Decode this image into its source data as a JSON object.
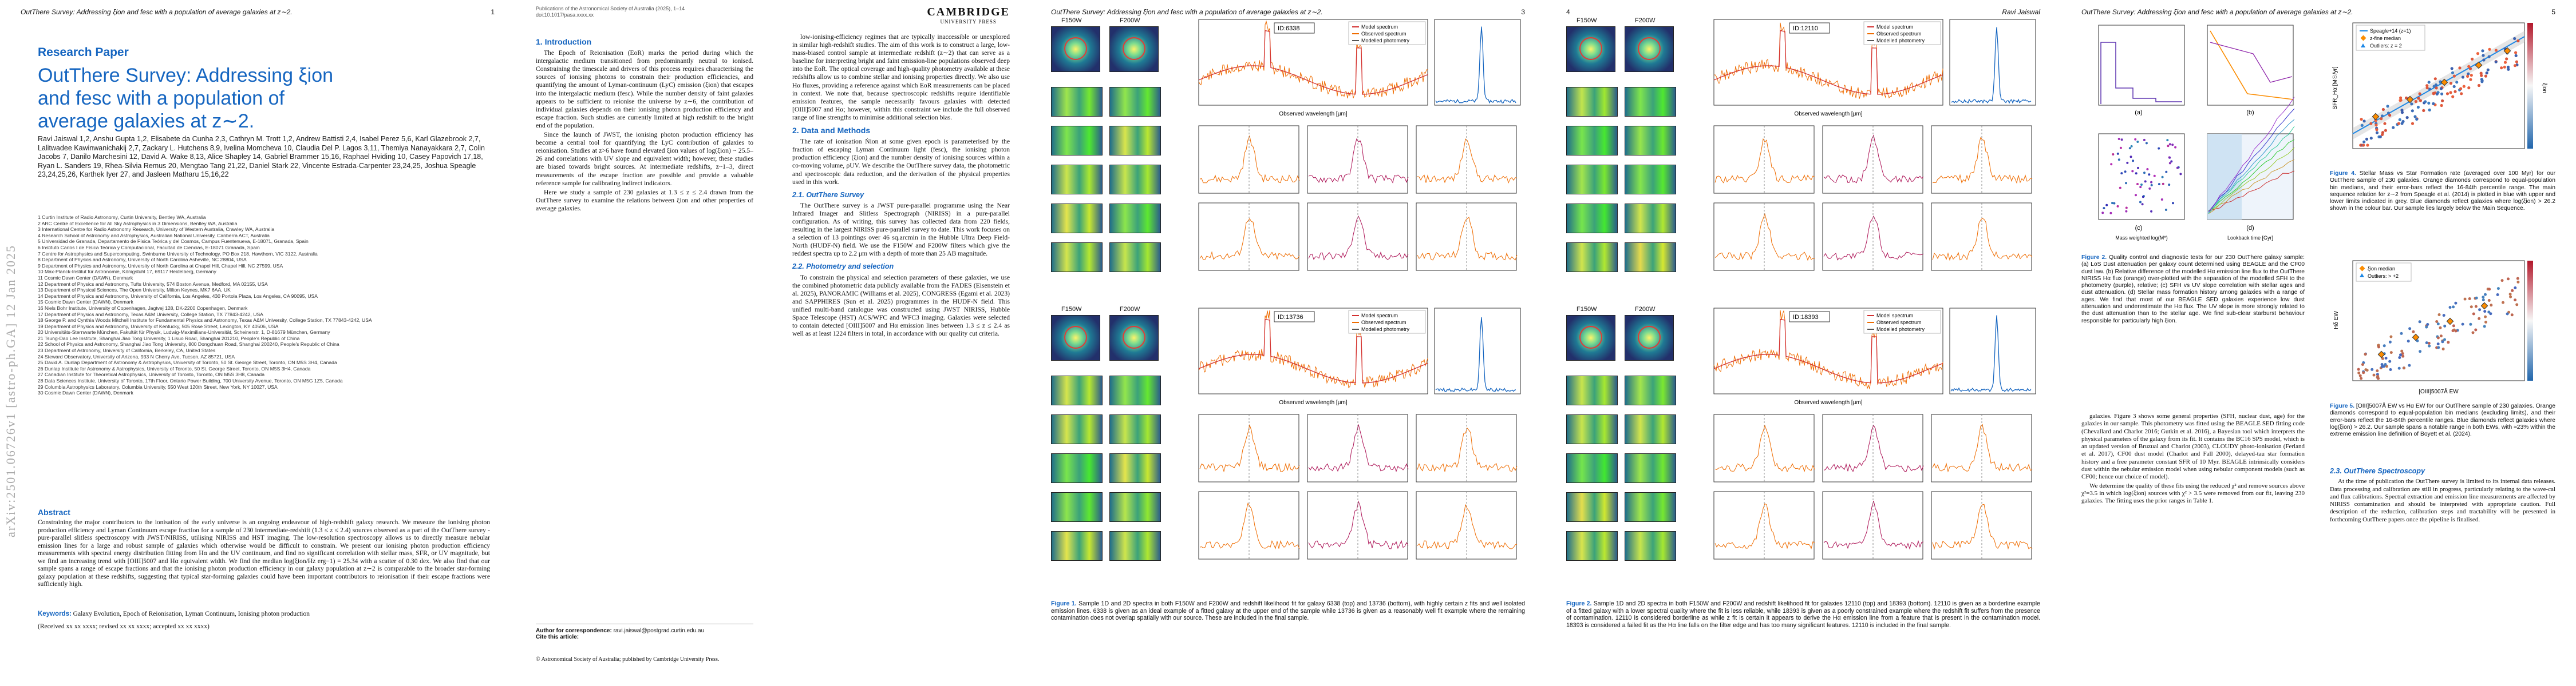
{
  "page1": {
    "running_title": "OutThere Survey: Addressing ξion and fesc with a population of average galaxies at z∼2.",
    "page_number": "1",
    "arxiv_id": "arXiv:2501.06726v1 [astro-ph.GA] 12 Jan 2025",
    "article_type": "Research Paper",
    "title": "OutThere Survey: Addressing ξion and fesc with a population of average galaxies at z∼2.",
    "authors": "Ravi Jaiswal 1,2, Anshu Gupta 1,2, Elisabete da Cunha 2,3, Cathryn M. Trott 1,2, Andrew Battisti 2,4, Isabel Perez 5,6, Karl Glazebrook 2,7, Lalitwadee Kawinwanichakij 2,7, Zackary L. Hutchens 8,9, Ivelina Momcheva 10, Claudia Del P. Lagos 3,11, Themiya Nanayakkara 2,7, Colin Jacobs 7, Danilo Marchesini 12, David A. Wake 8,13, Alice Shapley 14, Gabriel Brammer 15,16, Raphael Hviding 10, Casey Papovich 17,18, Ryan L. Sanders 19, Rhea-Silvia Remus 20, Mengtao Tang 21,22, Daniel Stark 22, Vincente Estrada-Carpenter 23,24,25, Joshua Speagle 23,24,25,26, Karthek Iyer 27, and Jasleen Matharu 15,16,22",
    "affiliations": [
      "1 Curtin Institute of Radio Astronomy, Curtin University, Bentley WA, Australia",
      "2 ARC Centre of Excellence for All Sky Astrophysics in 3 Dimensions, Bentley WA, Australia",
      "3 International Centre for Radio Astronomy Research, University of Western Australia, Crawley WA, Australia",
      "4 Research School of Astronomy and Astrophysics, Australian National University, Canberra ACT, Australia",
      "5 Universidad de Granada, Departamento de Física Teórica y del Cosmos, Campus Fuentenueva, E-18071, Granada, Spain",
      "6 Instituto Carlos I de Física Teórica y Computacional, Facultad de Ciencias, E-18071 Granada, Spain",
      "7 Centre for Astrophysics and Supercomputing, Swinburne University of Technology, PO Box 218, Hawthorn, VIC 3122, Australia",
      "8 Department of Physics and Astronomy, University of North Carolina Asheville, NC 28804, USA",
      "9 Department of Physics and Astronomy, University of North Carolina at Chapel Hill, Chapel Hill, NC 27599, USA",
      "10 Max-Planck-Institut für Astronomie, Königstuhl 17, 69117 Heidelberg, Germany",
      "11 Cosmic Dawn Center (DAWN), Denmark",
      "12 Department of Physics and Astronomy, Tufts University, 574 Boston Avenue, Medford, MA 02155, USA",
      "13 Department of Physical Sciences, The Open University, Milton Keynes, MK7 6AA, UK",
      "14 Department of Physics and Astronomy, University of California, Los Angeles, 430 Portola Plaza, Los Angeles, CA 90095, USA",
      "15 Cosmic Dawn Center (DAWN), Denmark",
      "16 Niels Bohr Institute, University of Copenhagen, Jagtvej 128, DK-2200 Copenhagen, Denmark",
      "17 Department of Physics and Astronomy, Texas A&M University, College Station, TX 77843-4242, USA",
      "18 George P. and Cynthia Woods Mitchell Institute for Fundamental Physics and Astronomy, Texas A&M University, College Station, TX 77843-4242, USA",
      "19 Department of Physics and Astronomy, University of Kentucky, 505 Rose Street, Lexington, KY 40506, USA",
      "20 Universitäts-Sternwarte München, Fakultät für Physik, Ludwig-Maximilians-Universität, Scheinerstr. 1, D-81679 München, Germany",
      "21 Tsung-Dao Lee Institute, Shanghai Jiao Tong University, 1 Lisuo Road, Shanghai 201210, People's Republic of China",
      "22 School of Physics and Astronomy, Shanghai Jiao Tong University, 800 Dongchuan Road, Shanghai 200240, People's Republic of China",
      "23 Department of Astronomy, University of California, Berkeley, CA, United States",
      "24 Steward Observatory, University of Arizona, 933 N Cherry Ave, Tucson, AZ 85721, USA",
      "25 David A. Dunlap Department of Astronomy & Astrophysics, University of Toronto, 50 St. George Street, Toronto, ON M5S 3H4, Canada",
      "26 Dunlap Institute for Astronomy & Astrophysics, University of Toronto, 50 St. George Street, Toronto, ON M5S 3H4, Canada",
      "27 Canadian Institute for Theoretical Astrophysics, University of Toronto, Toronto, ON M5S 3H8, Canada",
      "28 Data Sciences Institute, University of Toronto, 17th Floor, Ontario Power Building, 700 University Avenue, Toronto, ON M5G 1Z5, Canada",
      "29 Columbia Astrophysics Laboratory, Columbia University, 550 West 120th Street, New York, NY 10027, USA",
      "30 Cosmic Dawn Center (DAWN), Denmark"
    ],
    "abstract_heading": "Abstract",
    "abstract": "Constraining the major contributors to the ionisation of the early universe is an ongoing endeavour of high-redshift galaxy research. We measure the ionising photon production efficiency and Lyman Continuum escape fraction for a sample of 230 intermediate-redshift (1.3 ≤ z ≤ 2.4) sources observed as a part of the OutThere survey - pure-parallel slitless spectroscopy with JWST/NIRISS, utilising NIRISS and HST imaging. The low-resolution spectroscopy allows us to directly measure nebular emission lines for a large and robust sample of galaxies which otherwise would be difficult to constrain. We present our ionising photon production efficiency measurements with spectral energy distribution fitting from Hα and the UV continuum, and find no significant correlation with stellar mass, SFR, or UV magnitude, but we find an increasing trend with [OIII]5007 and Hα equivalent width. We find the median log(ξion/Hz erg−1) = 25.34 with a scatter of 0.30 dex. We also find that our sample spans a range of escape fractions and that the ionising photon production efficiency in our galaxy population at z∼2 is comparable to the broader star-forming galaxy population at these redshifts, suggesting that typical star-forming galaxies could have been important contributors to reionisation if their escape fractions were sufficiently high.",
    "keywords_label": "Keywords:",
    "keywords": "Galaxy Evolution, Epoch of Reionisation, Lyman Continuum, Ionising photon production",
    "received": "(Received xx xx xxxx; revised xx xx xxxx; accepted xx xx xxxx)"
  },
  "page2": {
    "publisher_line1": "Publications of the Astronomical Society of Australia (2025), 1–14",
    "publisher_line2": "doi:10.1017/pasa.xxxx.xx",
    "logo_line1": "CAMBRIDGE",
    "logo_line2": "UNIVERSITY PRESS",
    "sec1_title": "1. Introduction",
    "sec1_p1": "The Epoch of Reionisation (EoR) marks the period during which the intergalactic medium transitioned from predominantly neutral to ionised. Constraining the timescale and drivers of this process requires characterising the sources of ionising photons to constrain their production efficiencies, and quantifying the amount of Lyman-continuum (LyC) emission (ξion) that escapes into the intergalactic medium (fesc). While the number density of faint galaxies appears to be sufficient to reionise the universe by z∼6, the contribution of individual galaxies depends on their ionising photon production efficiency and escape fraction. Such studies are currently limited at high redshift to the bright end of the population.",
    "sec1_p2": "Since the launch of JWST, the ionising photon production efficiency has become a central tool for quantifying the LyC contribution of galaxies to reionisation. Studies at z>6 have found elevated ξion values of log(ξion) ~ 25.5–26 and correlations with UV slope and equivalent width; however, these studies are biased towards bright sources. At intermediate redshifts, z~1–3, direct measurements of the escape fraction are possible and provide a valuable reference sample for calibrating indirect indicators.",
    "sec1_p3": "Here we study a sample of 230 galaxies at 1.3 ≤ z ≤ 2.4 drawn from the OutThere survey to examine the relations between ξion and other properties of average galaxies.",
    "footnote_label": "Author for correspondence: ",
    "footnote_email": "ravi.jaiswal@postgrad.curtin.edu.au",
    "cite_label": "Cite this article: ",
    "copyright": "© Astronomical Society of Australia; published by Cambridge University Press.",
    "col2_p1": "low-ionising-efficiency regimes that are typically inaccessible or unexplored in similar high-redshift studies. The aim of this work is to construct a large, low-mass-biased control sample at intermediate redshift (z∼2) that can serve as a baseline for interpreting bright and faint emission-line populations observed deep into the EoR. The optical coverage and high-quality photometry available at these redshifts allow us to combine stellar and ionising properties directly. We also use Hα fluxes, providing a reference against which EoR measurements can be placed in context. We note that, because spectroscopic redshifts require identifiable emission features, the sample necessarily favours galaxies with detected [OIII]5007 and Hα; however, within this constraint we include the full observed range of line strengths to minimise additional selection bias.",
    "sec2_title": "2. Data and Methods",
    "sec2_p1": "The rate of ionisation Ṅion at some given epoch is parameterised by the fraction of escaping Lyman Continuum light (fesc), the ionising photon production efficiency (ξion) and the number density of ionising sources within a co-moving volume, ρUV. We describe the OutThere survey data, the photometric and spectroscopic data reduction, and the derivation of the physical properties used in this work.",
    "sub21_title": "2.1. OutThere Survey",
    "sub21_p1": "The OutThere survey is a JWST pure-parallel programme using the Near Infrared Imager and Slitless Spectrograph (NIRISS) in a pure-parallel configuration. As of writing, this survey has collected data from 220 fields, resulting in the largest NIRISS pure-parallel survey to date. This work focuses on a selection of 13 pointings over 46 sq.arcmin in the Hubble Ultra Deep Field-North (HUDF-N) field. We use the F150W and F200W filters which give the reddest spectra up to 2.2 μm with a depth of more than 25 AB magnitude.",
    "sub22_title": "2.2. Photometry and selection",
    "sub22_p1": "To constrain the physical and selection parameters of these galaxies, we use the combined photometric data publicly available from the FADES (Eisenstein et al. 2025), PANORAMIC (Williams et al. 2025), CONGRESS (Egami et al. 2023) and SAPPHIRES (Sun et al. 2025) programmes in the HUDF-N field. This unified multi-band catalogue was constructed using JWST NIRISS, Hubble Space Telescope (HST) ACS/WFC and WFC3 imaging. Galaxies were selected to contain detected [OIII]5007 and Hα emission lines between 1.3 ≤ z ≤ 2.4 as well as at least 1224 filters in total, in accordance with our quality cut criteria."
  },
  "page3": {
    "running_title": "OutThere Survey: Addressing ξion and fesc with a population of average galaxies at z∼2.",
    "page_number": "3",
    "filter1": "F150W",
    "filter2": "F200W",
    "id_a": "ID:6338",
    "id_b": "ID:13736",
    "legend_model": "Model spectrum",
    "legend_obs": "Observed spectrum",
    "legend_phot": "Modelled photometry",
    "xlabel": "Observed wavelength [μm]",
    "ylabel": "Flux",
    "caption_label": "Figure 1.",
    "caption": " Sample 1D and 2D spectra in both F150W and F200W and redshift likelihood fit for galaxy 6338 (top) and 13736 (bottom), with highly certain z fits and well isolated emission lines. 6338 is given as an ideal example of a fitted galaxy at the upper end of the sample while 13736 is given as a reasonably well fit example where the remaining contamination does not overlap spatially with our source. These are included in the final sample."
  },
  "page4": {
    "running_title": "Ravi Jaiswal",
    "page_number": "4",
    "filter1": "F150W",
    "filter2": "F200W",
    "id_a": "ID:12110",
    "id_b": "ID:18393",
    "legend_model": "Model spectrum",
    "legend_obs": "Observed spectrum",
    "legend_phot": "Modelled photometry",
    "xlabel": "Observed wavelength [μm]",
    "caption_label": "Figure 2.",
    "caption": " Sample 1D and 2D spectra in both F150W and F200W and redshift likelihood fit for galaxies 12110 (top) and 18393 (bottom). 12110 is given as a borderline example of a fitted galaxy with a lower spectral quality where the fit is less reliable, while 18393 is given as a poorly constrained example where the redshift fit suffers from the presence of contamination. 12110 is considered borderline as while z fit is certain it appears to derive the Hα emission line from a feature that is present in the contamination model. 18393 is considered a failed fit as the Hα line falls on the filter edge and has too many significant features. 12110 is included in the final sample."
  },
  "page5": {
    "running_title": "OutThere Survey: Addressing ξion and fesc with a population of average galaxies at z∼2.",
    "page_number": "5",
    "legend1": "Speagle+14 (z=1)",
    "legend2": "z-fine median",
    "legend3": "Outliers: z = 2",
    "legend4": "ξion median",
    "legend5": "Outliers: > +2",
    "panel_a": "(a)",
    "panel_b": "(b)",
    "panel_c": "(c)",
    "panel_d": "(d)",
    "axis_sfr": "SFR_Hα [M☉/yr]",
    "axis_mass": "Mass weighted log(M*)",
    "axis_lookback": "Lookback time [Gyr]",
    "axis_hdelta": "Hδ EW",
    "axis_oiii": "[OIII]5007Å EW",
    "axis_xion": "ξion",
    "fig2_caption_label": "Figure 2.",
    "fig2_caption": " Quality control and diagnostic tests for our 230 OutThere galaxy sample: (a) LoS Dust attenuation per galaxy count determined using BEAGLE and the CF00 dust law. (b) Relative difference of the modelled Hα emission line flux to the OutThere NIRISS Hα flux (orange) over-plotted with the separation of the modelled SFH to the photometry (purple), relative; (c) SFH vs UV slope correlation with stellar ages and dust attenuation. (d) Stellar mass formation history among galaxies with a range of ages. We find that most of our BEAGLE SED galaxies experience low dust attenuation and underestimate the Hα flux. The UV slope is more strongly related to the dust attenuation than to the stellar age. We find sub-clear starburst behaviour responsible for particularly high ξion.",
    "fig4_caption_label": "Figure 4.",
    "fig4_caption": " Stellar Mass vs Star Formation rate (averaged over 100 Myr) for our OutThere sample of 230 galaxies. Orange diamonds correspond to equal-population bin medians, and their error-bars reflect the 16-84th percentile range. The main sequence relation for z∼2 from Speagle et al. (2014) is plotted in blue with upper and lower limits indicated in grey. Blue diamonds reflect galaxies where log(ξion) > 26.2 shown in the colour bar. Our sample lies largely below the Main Sequence.",
    "fig5_caption_label": "Figure 5.",
    "fig5_caption": " [OIII]5007Å EW vs Hα EW for our OutThere sample of 230 galaxies. Orange diamonds correspond to equal-population bin medians (excluding limits), and their error-bars reflect the 16-84th percentile ranges. Blue diamonds reflect galaxies where log(ξion) > 26.2. Our sample spans a notable range in both EWs, with ≈23% within the extreme emission line definition of Boyett et al. (2024).",
    "colL_p1": "galaxies. Figure 3 shows some general properties (SFH, nuclear dust, age) for the galaxies in our sample. This photometry was fitted using the BEAGLE SED fitting code (Chevallard and Charlot 2016; Gutkin et al. 2016), a Bayesian tool which interprets the physical parameters of the galaxy from its fit. It contains the BC16 SPS model, which is an updated version of Bruzual and Charlot (2003), CLOUDY photo-ionisation (Ferland et al. 2017), CF00 dust model (Charlot and Fall 2000), delayed-tau star formation history and a free parameter constant SFR of 10 Myr. BEAGLE intrinsically considers dust within the nebular emission model when using nebular component models (such as CF00; hence our choice of model).",
    "colL_p2": "We determine the quality of these fits using the reduced χ² and remove sources above χ²=3.5 in which log(ξion) sources with χ² > 3.5 were removed from our fit, leaving 230 galaxies. The fitting uses the prior ranges in Table 1.",
    "sub23_title": "2.3. OutThere Spectroscopy",
    "sub23_p1": "At the time of publication the OutThere survey is limited to its internal data releases. Data processing and calibration are still in progress, particularly relating to the wave-cal and flux calibrations. Spectral extraction and emission line measurements are affected by NIRISS contamination and should be interpreted with appropriate caution. Full description of the reduction, calibration steps and tractability will be presented in forthcoming OutThere papers once the pipeline is finalised."
  }
}
